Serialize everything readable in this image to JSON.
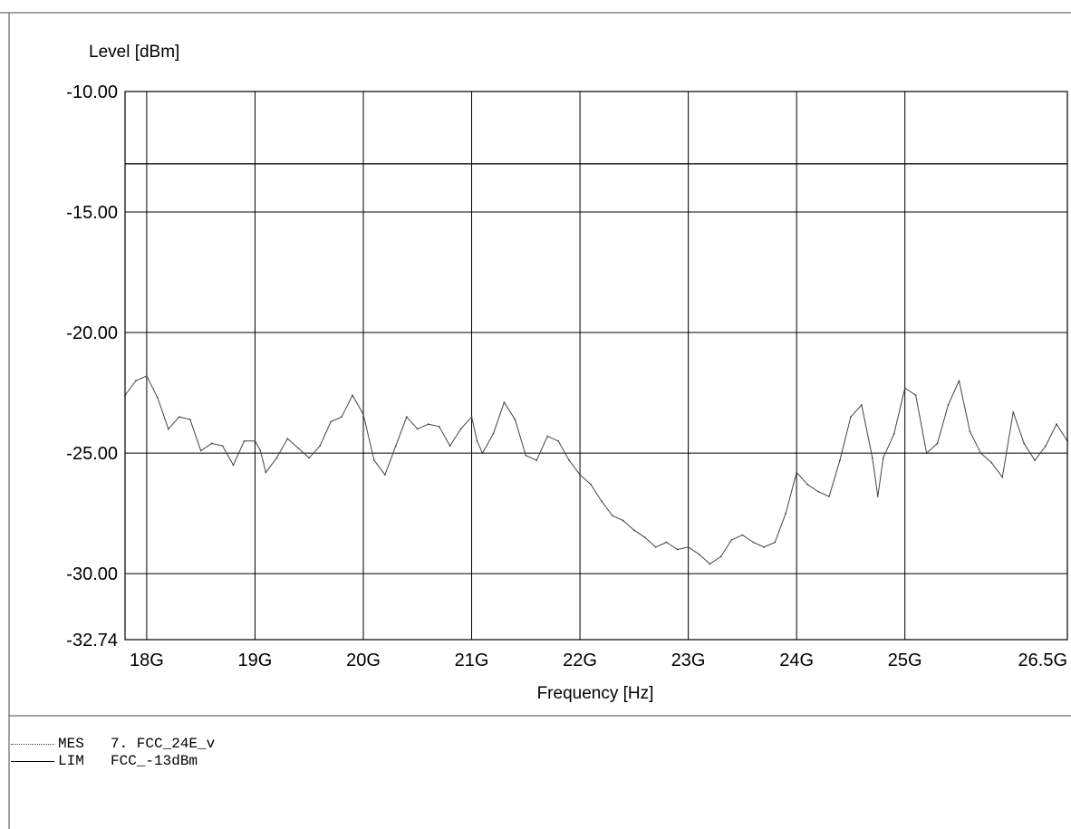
{
  "chart_data": {
    "type": "line",
    "ylabel": "Level [dBm]",
    "xlabel": "Frequency [Hz]",
    "xlim": [
      17.8,
      26.5
    ],
    "ylim": [
      -32.74,
      -10.0
    ],
    "x_ticks": [
      18,
      19,
      20,
      21,
      22,
      23,
      24,
      25,
      26.5
    ],
    "x_tick_labels": [
      "18G",
      "19G",
      "20G",
      "21G",
      "22G",
      "23G",
      "24G",
      "25G",
      "26.5G"
    ],
    "y_ticks": [
      -10.0,
      -15.0,
      -20.0,
      -25.0,
      -30.0,
      -32.74
    ],
    "y_tick_labels": [
      "-10.00",
      "-15.00",
      "-20.00",
      "-25.00",
      "-30.00",
      "-32.74"
    ],
    "extra_gridlines_y": [
      -13.0
    ],
    "grid": true,
    "x_unit": "GHz",
    "series": [
      {
        "name": "MES",
        "legend_label": "7. FCC_24E_v",
        "color": "#444444",
        "style": "dotted",
        "x": [
          17.8,
          17.9,
          18.0,
          18.1,
          18.2,
          18.3,
          18.4,
          18.5,
          18.6,
          18.7,
          18.8,
          18.9,
          19.0,
          19.05,
          19.1,
          19.2,
          19.3,
          19.4,
          19.5,
          19.6,
          19.7,
          19.8,
          19.9,
          20.0,
          20.1,
          20.2,
          20.3,
          20.4,
          20.5,
          20.6,
          20.7,
          20.8,
          20.9,
          21.0,
          21.05,
          21.1,
          21.2,
          21.3,
          21.4,
          21.5,
          21.6,
          21.7,
          21.8,
          21.9,
          22.0,
          22.1,
          22.2,
          22.3,
          22.4,
          22.5,
          22.6,
          22.7,
          22.8,
          22.9,
          23.0,
          23.1,
          23.2,
          23.3,
          23.4,
          23.5,
          23.6,
          23.7,
          23.8,
          23.9,
          24.0,
          24.1,
          24.2,
          24.3,
          24.4,
          24.5,
          24.6,
          24.7,
          24.75,
          24.8,
          24.9,
          25.0,
          25.1,
          25.2,
          25.3,
          25.4,
          25.5,
          25.6,
          25.7,
          25.8,
          25.9,
          26.0,
          26.1,
          26.2,
          26.3,
          26.4,
          26.5
        ],
        "values": [
          -22.6,
          -22.0,
          -21.8,
          -22.7,
          -24.0,
          -23.5,
          -23.6,
          -24.9,
          -24.6,
          -24.7,
          -25.5,
          -24.5,
          -24.5,
          -24.9,
          -25.8,
          -25.2,
          -24.4,
          -24.8,
          -25.2,
          -24.7,
          -23.7,
          -23.5,
          -22.6,
          -23.4,
          -25.3,
          -25.9,
          -24.7,
          -23.5,
          -24.0,
          -23.8,
          -23.9,
          -24.7,
          -24.0,
          -23.5,
          -24.5,
          -25.0,
          -24.2,
          -22.9,
          -23.6,
          -25.1,
          -25.3,
          -24.3,
          -24.5,
          -25.3,
          -25.9,
          -26.3,
          -27.0,
          -27.6,
          -27.8,
          -28.2,
          -28.5,
          -28.9,
          -28.7,
          -29.0,
          -28.9,
          -29.2,
          -29.6,
          -29.3,
          -28.6,
          -28.4,
          -28.7,
          -28.9,
          -28.7,
          -27.5,
          -25.8,
          -26.3,
          -26.6,
          -26.8,
          -25.3,
          -23.5,
          -23.0,
          -25.2,
          -26.8,
          -25.2,
          -24.2,
          -22.3,
          -22.6,
          -25.0,
          -24.6,
          -23.0,
          -22.0,
          -24.1,
          -25.0,
          -25.4,
          -26.0,
          -23.3,
          -24.6,
          -25.3,
          -24.7,
          -23.8,
          -24.5
        ]
      },
      {
        "name": "LIM",
        "legend_label": "FCC_-13dBm",
        "color": "#000000",
        "style": "solid",
        "x": [
          17.8,
          26.5
        ],
        "values": [
          -13.0,
          -13.0
        ]
      }
    ]
  },
  "legend": {
    "items": [
      {
        "tag": "MES",
        "name": "7. FCC_24E_v"
      },
      {
        "tag": "LIM",
        "name": "FCC_-13dBm"
      }
    ]
  }
}
